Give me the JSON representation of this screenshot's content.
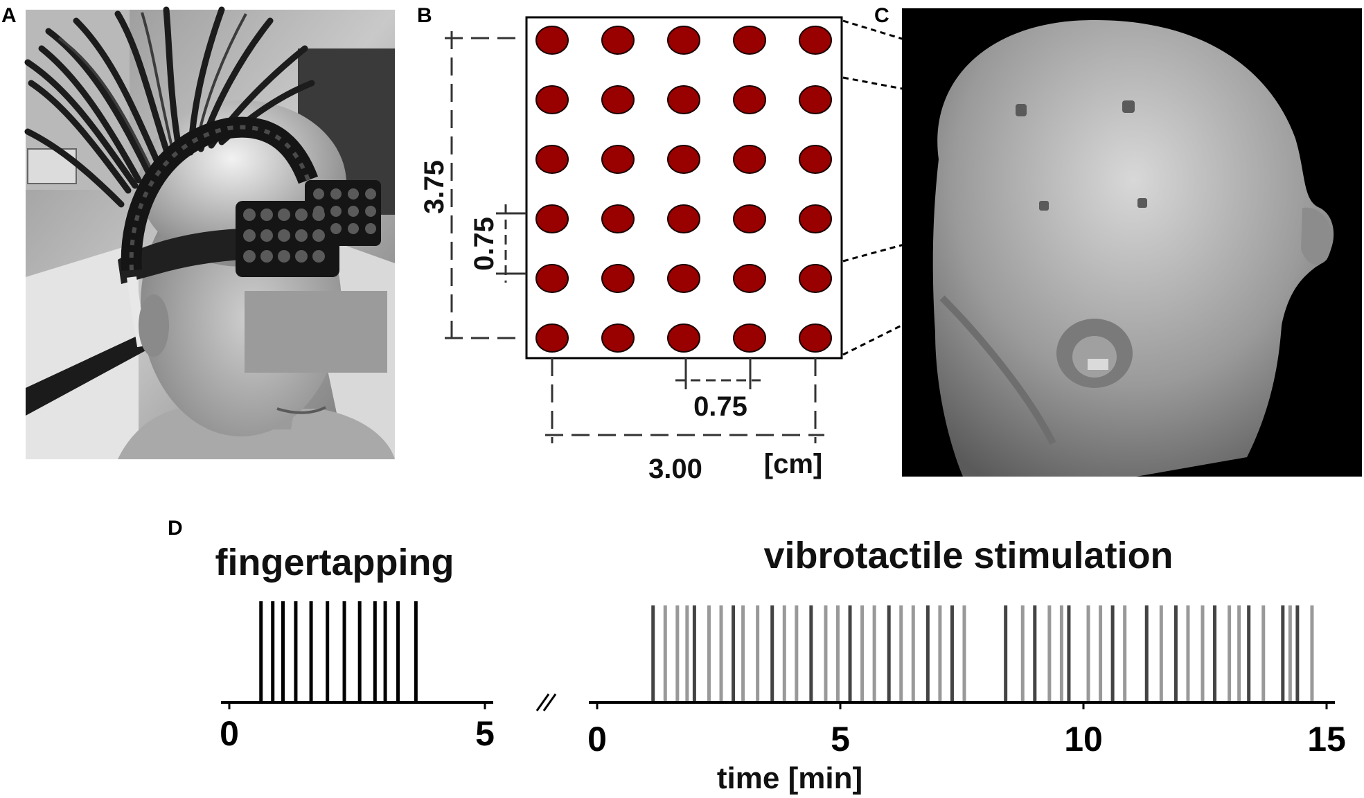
{
  "panels": {
    "a": {
      "label": "A"
    },
    "b": {
      "label": "B",
      "dim_height": "3.75",
      "dim_pitch_v": "0.75",
      "dim_pitch_h": "0.75",
      "dim_width": "3.00",
      "unit": "[cm]",
      "electrode_rows": 6,
      "electrode_cols": 5,
      "electrode_color": "#990000"
    },
    "c": {
      "label": "C"
    },
    "d": {
      "label": "D"
    }
  },
  "colors": {
    "electrode": "#990000",
    "electrode_outline": "#1a0000",
    "tap_line": "#000000",
    "stim_dark": "#444444",
    "stim_light": "#999999"
  },
  "chart_data": [
    {
      "type": "event-raster",
      "title": "fingertapping",
      "xlabel": "",
      "xlim": [
        0,
        5
      ],
      "xticks": [
        0,
        5
      ],
      "tick_labels": [
        "0",
        "5"
      ],
      "events": [
        0.62,
        0.85,
        1.05,
        1.3,
        1.6,
        1.92,
        2.25,
        2.55,
        2.85,
        3.05,
        3.3,
        3.65
      ]
    },
    {
      "type": "event-raster",
      "title": "vibrotactile stimulation",
      "xlabel": "time [min]",
      "xlim": [
        0,
        15
      ],
      "xticks": [
        0,
        5,
        10,
        15
      ],
      "tick_labels": [
        "0",
        "5",
        "10",
        "15"
      ],
      "events_dark": [
        1.15,
        2.0,
        2.8,
        3.6,
        4.4,
        5.2,
        6.0,
        6.8,
        7.3,
        8.4,
        9.0,
        9.7,
        10.6,
        11.3,
        11.9,
        12.7,
        13.4,
        14.1,
        14.4
      ],
      "events_light": [
        1.4,
        1.65,
        1.85,
        2.3,
        2.55,
        3.0,
        3.3,
        3.85,
        4.1,
        4.7,
        4.95,
        5.45,
        5.7,
        6.25,
        6.5,
        7.05,
        7.55,
        8.75,
        9.3,
        9.55,
        10.1,
        10.35,
        10.85,
        11.6,
        12.15,
        12.45,
        13.0,
        13.2,
        13.7,
        14.25,
        14.7
      ]
    }
  ]
}
